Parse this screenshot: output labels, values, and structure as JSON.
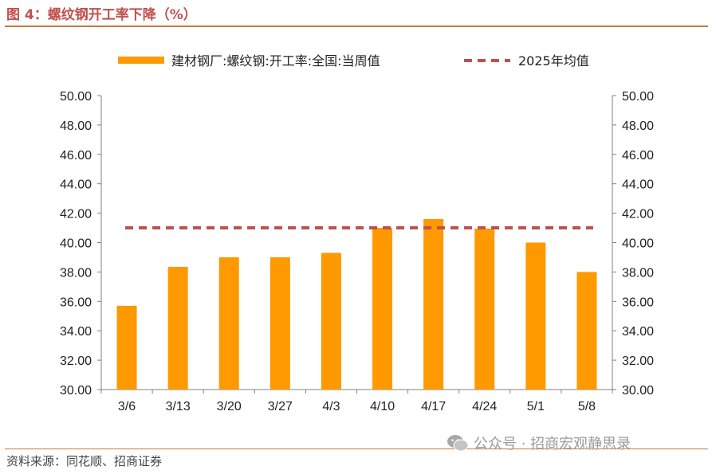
{
  "figure": {
    "title": "图 4：螺纹钢开工率下降（%）",
    "source": "资料来源：同花顺、招商证券",
    "watermark": "公众号 · 招商宏观静思录",
    "watermark_icon": "wechat-icon"
  },
  "colors": {
    "bar": "#ff9900",
    "avg_line": "#c0504d",
    "title": "#c0504d",
    "rule": "#c97a3b"
  },
  "chart_data": {
    "type": "bar",
    "categories": [
      "3/6",
      "3/13",
      "3/20",
      "3/27",
      "4/3",
      "4/10",
      "4/17",
      "4/24",
      "5/1",
      "5/8"
    ],
    "series": [
      {
        "name": "建材钢厂:螺纹钢:开工率:全国:当周值",
        "type": "bar",
        "values": [
          35.7,
          38.35,
          39.0,
          39.0,
          39.3,
          41.0,
          41.6,
          40.95,
          40.0,
          38.0
        ]
      },
      {
        "name": "2025年均值",
        "type": "line",
        "style": "dashed",
        "value": 41.0
      }
    ],
    "ylim": [
      30,
      50
    ],
    "y_ticks": [
      "30.00",
      "32.00",
      "34.00",
      "36.00",
      "38.00",
      "40.00",
      "42.00",
      "44.00",
      "46.00",
      "48.00",
      "50.00"
    ],
    "secondary_y_ticks": [
      "30.00",
      "32.00",
      "34.00",
      "36.00",
      "38.00",
      "40.00",
      "42.00",
      "44.00",
      "46.00",
      "48.00",
      "50.00"
    ],
    "legend_position": "top",
    "grid": false
  }
}
